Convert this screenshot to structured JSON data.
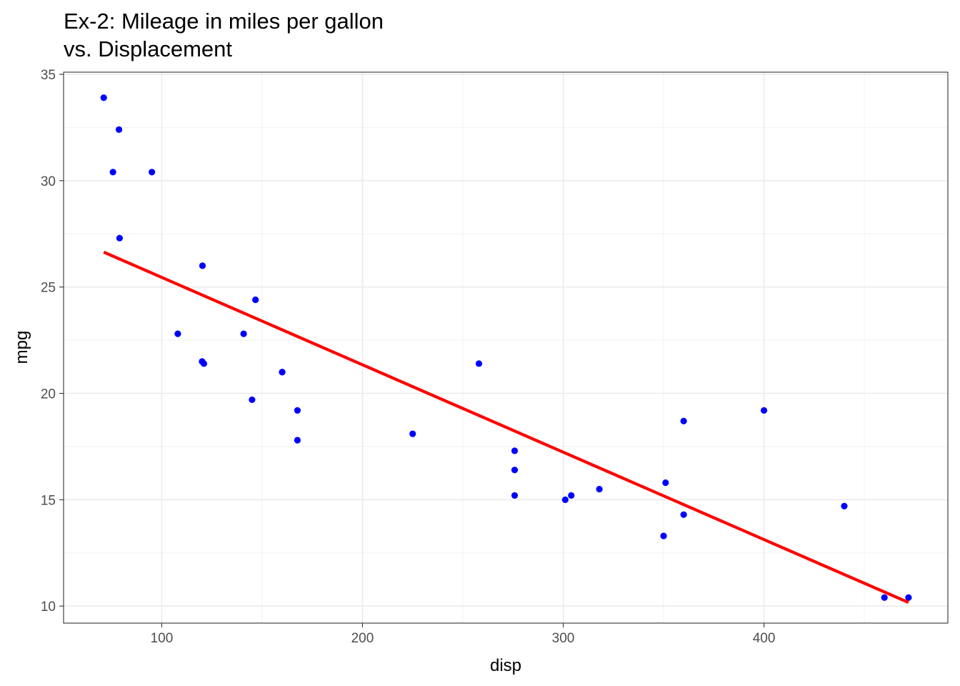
{
  "chart_data": {
    "type": "scatter",
    "title": "Ex-2: Mileage in miles per gallon",
    "subtitle": "vs. Displacement",
    "xlabel": "disp",
    "ylabel": "mpg",
    "xlim": [
      51.1,
      491.6
    ],
    "ylim": [
      9.2,
      35.1
    ],
    "x_ticks": [
      100,
      200,
      300,
      400
    ],
    "y_ticks": [
      10,
      15,
      20,
      25,
      30,
      35
    ],
    "x_tick_labels": [
      "100",
      "200",
      "300",
      "400"
    ],
    "y_tick_labels": [
      "10",
      "15",
      "20",
      "25",
      "30",
      "35"
    ],
    "grid": true,
    "theme": "bw",
    "point_color": "#0000ff",
    "line_color": "#ff0000",
    "series": [
      {
        "type": "scatter",
        "x": [
          160,
          160,
          108,
          258,
          360,
          225,
          360,
          146.7,
          140.8,
          167.6,
          167.6,
          275.8,
          275.8,
          275.8,
          472,
          460,
          440,
          78.7,
          75.7,
          71.1,
          120.1,
          318,
          304,
          350,
          400,
          79,
          120.3,
          95.1,
          351,
          145,
          301,
          121
        ],
        "y": [
          21,
          21,
          22.8,
          21.4,
          18.7,
          18.1,
          14.3,
          24.4,
          22.8,
          19.2,
          17.8,
          16.4,
          17.3,
          15.2,
          10.4,
          10.4,
          14.7,
          32.4,
          30.4,
          33.9,
          21.5,
          15.5,
          15.2,
          13.3,
          19.2,
          27.3,
          26,
          30.4,
          15.8,
          19.7,
          15,
          21.4
        ]
      },
      {
        "type": "line",
        "x": [
          71.1,
          472
        ],
        "y": [
          26.64,
          10.17
        ]
      }
    ]
  }
}
